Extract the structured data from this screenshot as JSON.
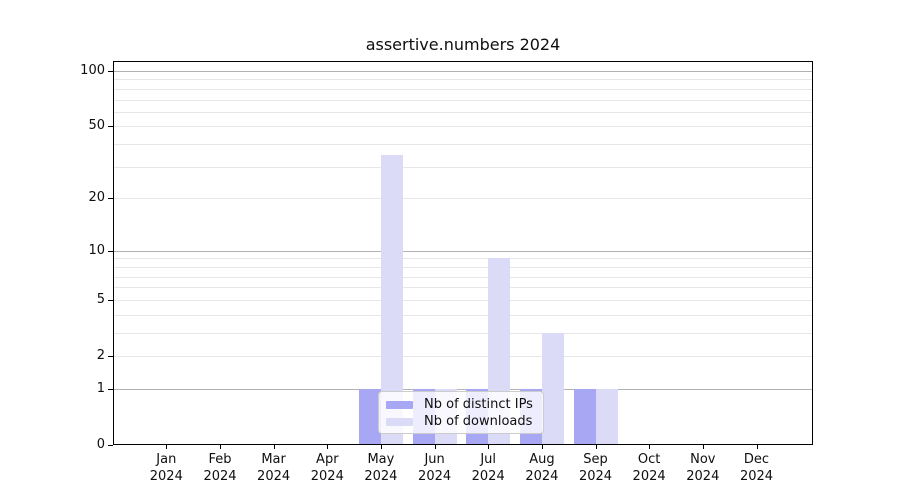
{
  "title": "assertive.numbers 2024",
  "chart_data": {
    "type": "bar",
    "title": "assertive.numbers 2024",
    "categories": [
      "Jan",
      "Feb",
      "Mar",
      "Apr",
      "May",
      "Jun",
      "Jul",
      "Aug",
      "Sep",
      "Oct",
      "Nov",
      "Dec"
    ],
    "year": "2024",
    "series": [
      {
        "name": "Nb of distinct IPs",
        "color": "#a7a7f4",
        "values": [
          0,
          0,
          0,
          0,
          1,
          1,
          1,
          1,
          1,
          0,
          0,
          0
        ]
      },
      {
        "name": "Nb of downloads",
        "color": "#dbdbf8",
        "values": [
          0,
          0,
          0,
          0,
          35,
          1,
          9,
          3,
          1,
          0,
          0,
          0
        ]
      }
    ],
    "y_axis": {
      "ticks": [
        0,
        1,
        2,
        5,
        10,
        20,
        50,
        100
      ],
      "minor_ticks": [
        3,
        4,
        6,
        7,
        8,
        9,
        30,
        40,
        60,
        70,
        80,
        90
      ],
      "scale": "log1p",
      "max": 113
    },
    "x_axis": {
      "label_format": "month over year"
    },
    "legend": {
      "position": "inside-bottom-center",
      "labels": [
        "Nb of distinct IPs",
        "Nb of downloads"
      ]
    },
    "grid": {
      "decade_ticks": [
        1,
        10,
        100
      ],
      "major_color": "#b2b2b2",
      "minor_color": "#e6e6e6"
    },
    "colors": {
      "spine": "#000000",
      "text": "#0f0f0f",
      "background": "#ffffff"
    }
  }
}
